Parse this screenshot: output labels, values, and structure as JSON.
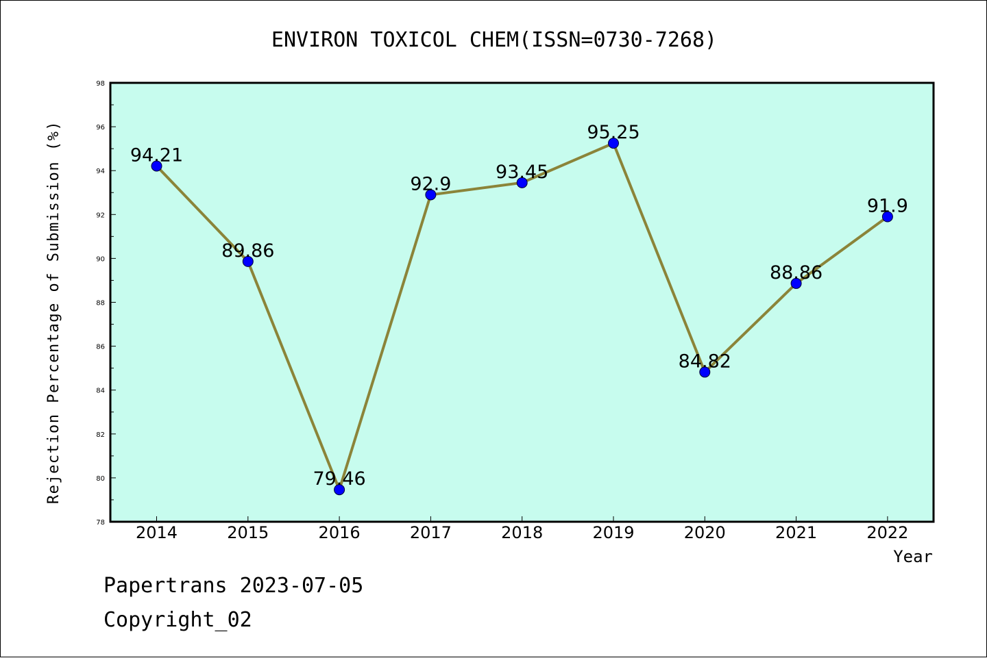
{
  "footer": {
    "line1": "Papertrans 2023-07-05",
    "line2": "Copyright_02"
  },
  "chart_data": {
    "type": "line",
    "title": "ENVIRON TOXICOL CHEM(ISSN=0730-7268)",
    "xlabel": "Year",
    "ylabel": "Rejection Percentage of Submission (%)",
    "x": [
      "2014",
      "2015",
      "2016",
      "2017",
      "2018",
      "2019",
      "2020",
      "2021",
      "2022"
    ],
    "values": [
      94.21,
      89.86,
      79.46,
      92.9,
      93.45,
      95.25,
      84.82,
      88.86,
      91.9
    ],
    "data_labels": [
      "94.21",
      "89.86",
      "79.46",
      "92.9",
      "93.45",
      "95.25",
      "84.82",
      "88.86",
      "91.9"
    ],
    "ylim": [
      78,
      98
    ],
    "yticks": [
      78,
      80,
      82,
      84,
      86,
      88,
      90,
      92,
      94,
      96,
      98
    ],
    "grid": false,
    "legend": "none",
    "colors": {
      "plot_background": "#c7fcee",
      "line": "#8b8439",
      "marker": "#0000ff"
    }
  }
}
